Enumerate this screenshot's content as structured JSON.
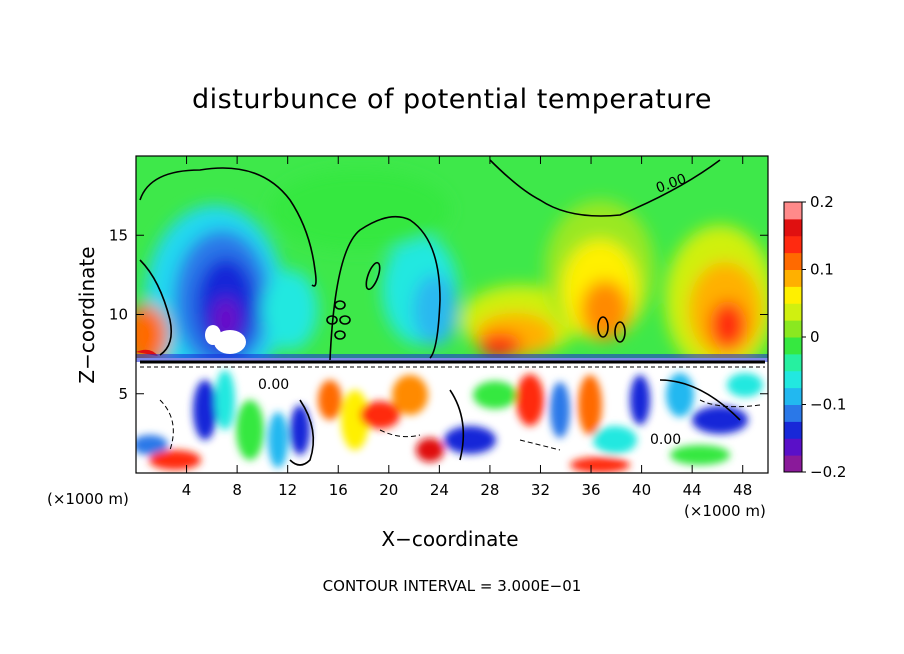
{
  "chart_data": {
    "type": "heatmap",
    "title": "disturbunce of potential temperature",
    "xlabel": "X−coordinate",
    "ylabel": "Z−coordinate",
    "x_unit": "(×1000 m)",
    "y_unit": "(×1000 m)",
    "xlim": [
      0,
      50
    ],
    "ylim": [
      0,
      20
    ],
    "x_ticks": [
      4,
      8,
      12,
      16,
      20,
      24,
      28,
      32,
      36,
      40,
      44,
      48
    ],
    "y_ticks": [
      5,
      10,
      15
    ],
    "colorbar": {
      "range": [
        -0.2,
        0.2
      ],
      "tick_values": [
        0.2,
        0.1,
        0,
        -0.1,
        -0.2
      ],
      "tick_labels": [
        "0.2",
        "0.1",
        "0",
        "−0.1",
        "−0.2"
      ],
      "colors": [
        "#8a1a9a",
        "#5a10c8",
        "#1828d8",
        "#2a78e8",
        "#22b8f0",
        "#22e8e0",
        "#26f0a0",
        "#36e840",
        "#8ae820",
        "#d0f010",
        "#fff000",
        "#ffb000",
        "#ff6a00",
        "#ff2a10",
        "#e01010",
        "#ff8a8a"
      ]
    },
    "contour_labels": [
      "0.00",
      "0.00",
      "0.00"
    ],
    "note": "CONTOUR INTERVAL = 3.000E−01"
  }
}
